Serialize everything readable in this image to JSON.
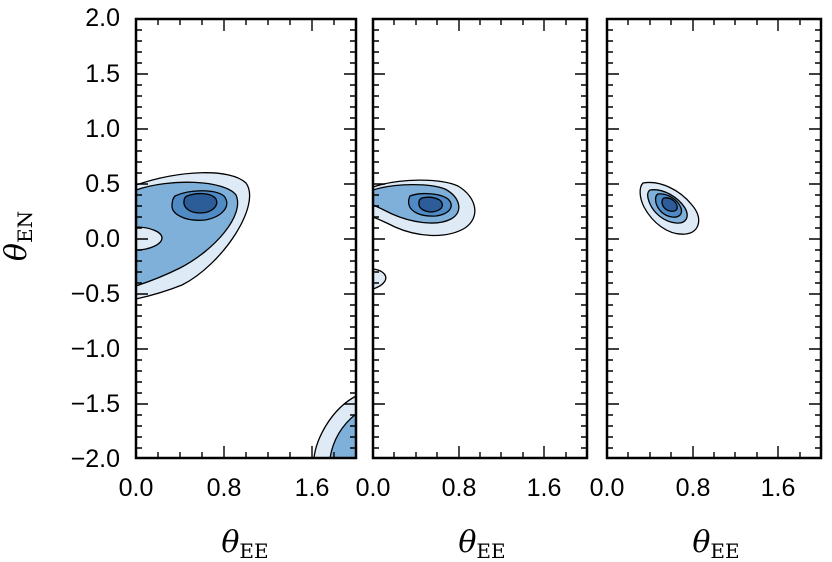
{
  "ylabel": {
    "symbol": "θ",
    "subscript": "EN"
  },
  "xlabel": {
    "symbol": "θ",
    "subscript": "EE"
  },
  "colors": {
    "level_1": "#deebf7",
    "level_2": "#7fb0d9",
    "level_3": "#4f8ac4",
    "level_4": "#2c5d99",
    "contour_line": "#000000"
  },
  "chart_data": [
    {
      "type": "contour",
      "panel": 1,
      "xlim": [
        0.0,
        2.0
      ],
      "ylim": [
        -2.0,
        2.0
      ],
      "x_ticks": [
        "0.0",
        "0.8",
        "1.6"
      ],
      "y_ticks": [
        "2.0",
        "1.5",
        "1.0",
        "0.5",
        "0.0",
        "−0.5",
        "−1.0",
        "−1.5",
        "−2.0"
      ],
      "peak": {
        "x": 0.55,
        "y": 0.32
      },
      "note_region": {
        "x_range": [
          1.6,
          2.0
        ],
        "y_range": [
          -2.0,
          -1.45
        ]
      }
    },
    {
      "type": "contour",
      "panel": 2,
      "xlim": [
        0.0,
        2.0
      ],
      "ylim": [
        -2.0,
        2.0
      ],
      "x_ticks": [
        "0.0",
        "0.8",
        "1.6"
      ],
      "peak": {
        "x": 0.52,
        "y": 0.3
      }
    },
    {
      "type": "contour",
      "panel": 3,
      "xlim": [
        0.0,
        2.0
      ],
      "ylim": [
        -2.0,
        2.0
      ],
      "x_ticks": [
        "0.0",
        "0.8",
        "1.6"
      ],
      "peak": {
        "x": 0.55,
        "y": 0.3
      }
    }
  ]
}
